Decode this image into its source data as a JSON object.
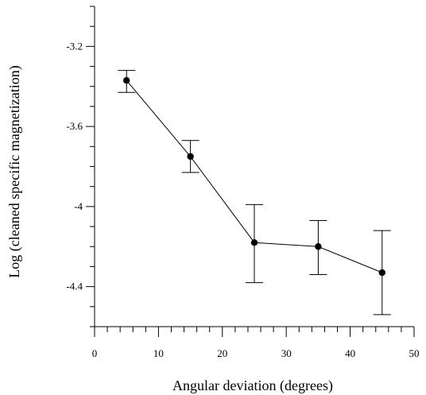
{
  "chart_data": {
    "type": "scatter",
    "title": "",
    "xlabel": "Angular deviation (degrees)",
    "ylabel": "Log (cleaned specific magnetization)",
    "xlim": [
      0,
      50
    ],
    "ylim": [
      -4.6,
      -3.0
    ],
    "x_ticks": [
      0,
      10,
      20,
      30,
      40,
      50
    ],
    "y_ticks": [
      -3.2,
      -3.6,
      -4,
      -4.4
    ],
    "x_tick_labels": [
      "0",
      "10",
      "20",
      "30",
      "40",
      "50"
    ],
    "y_tick_labels": [
      "-3.2",
      "-3.6",
      "-4",
      "-4.4"
    ],
    "x_minor_step": 2,
    "y_minor_step": 0.1,
    "grid": false,
    "connected": true,
    "series": [
      {
        "x": [
          5,
          15,
          25,
          35,
          45
        ],
        "y": [
          -3.37,
          -3.75,
          -4.18,
          -4.2,
          -4.33
        ],
        "y_err_upper": [
          -3.32,
          -3.67,
          -3.99,
          -4.07,
          -4.12
        ],
        "y_err_lower": [
          -3.43,
          -3.83,
          -4.38,
          -4.34,
          -4.54
        ]
      }
    ],
    "colors": {
      "line": "#000000",
      "marker": "#000000"
    }
  }
}
